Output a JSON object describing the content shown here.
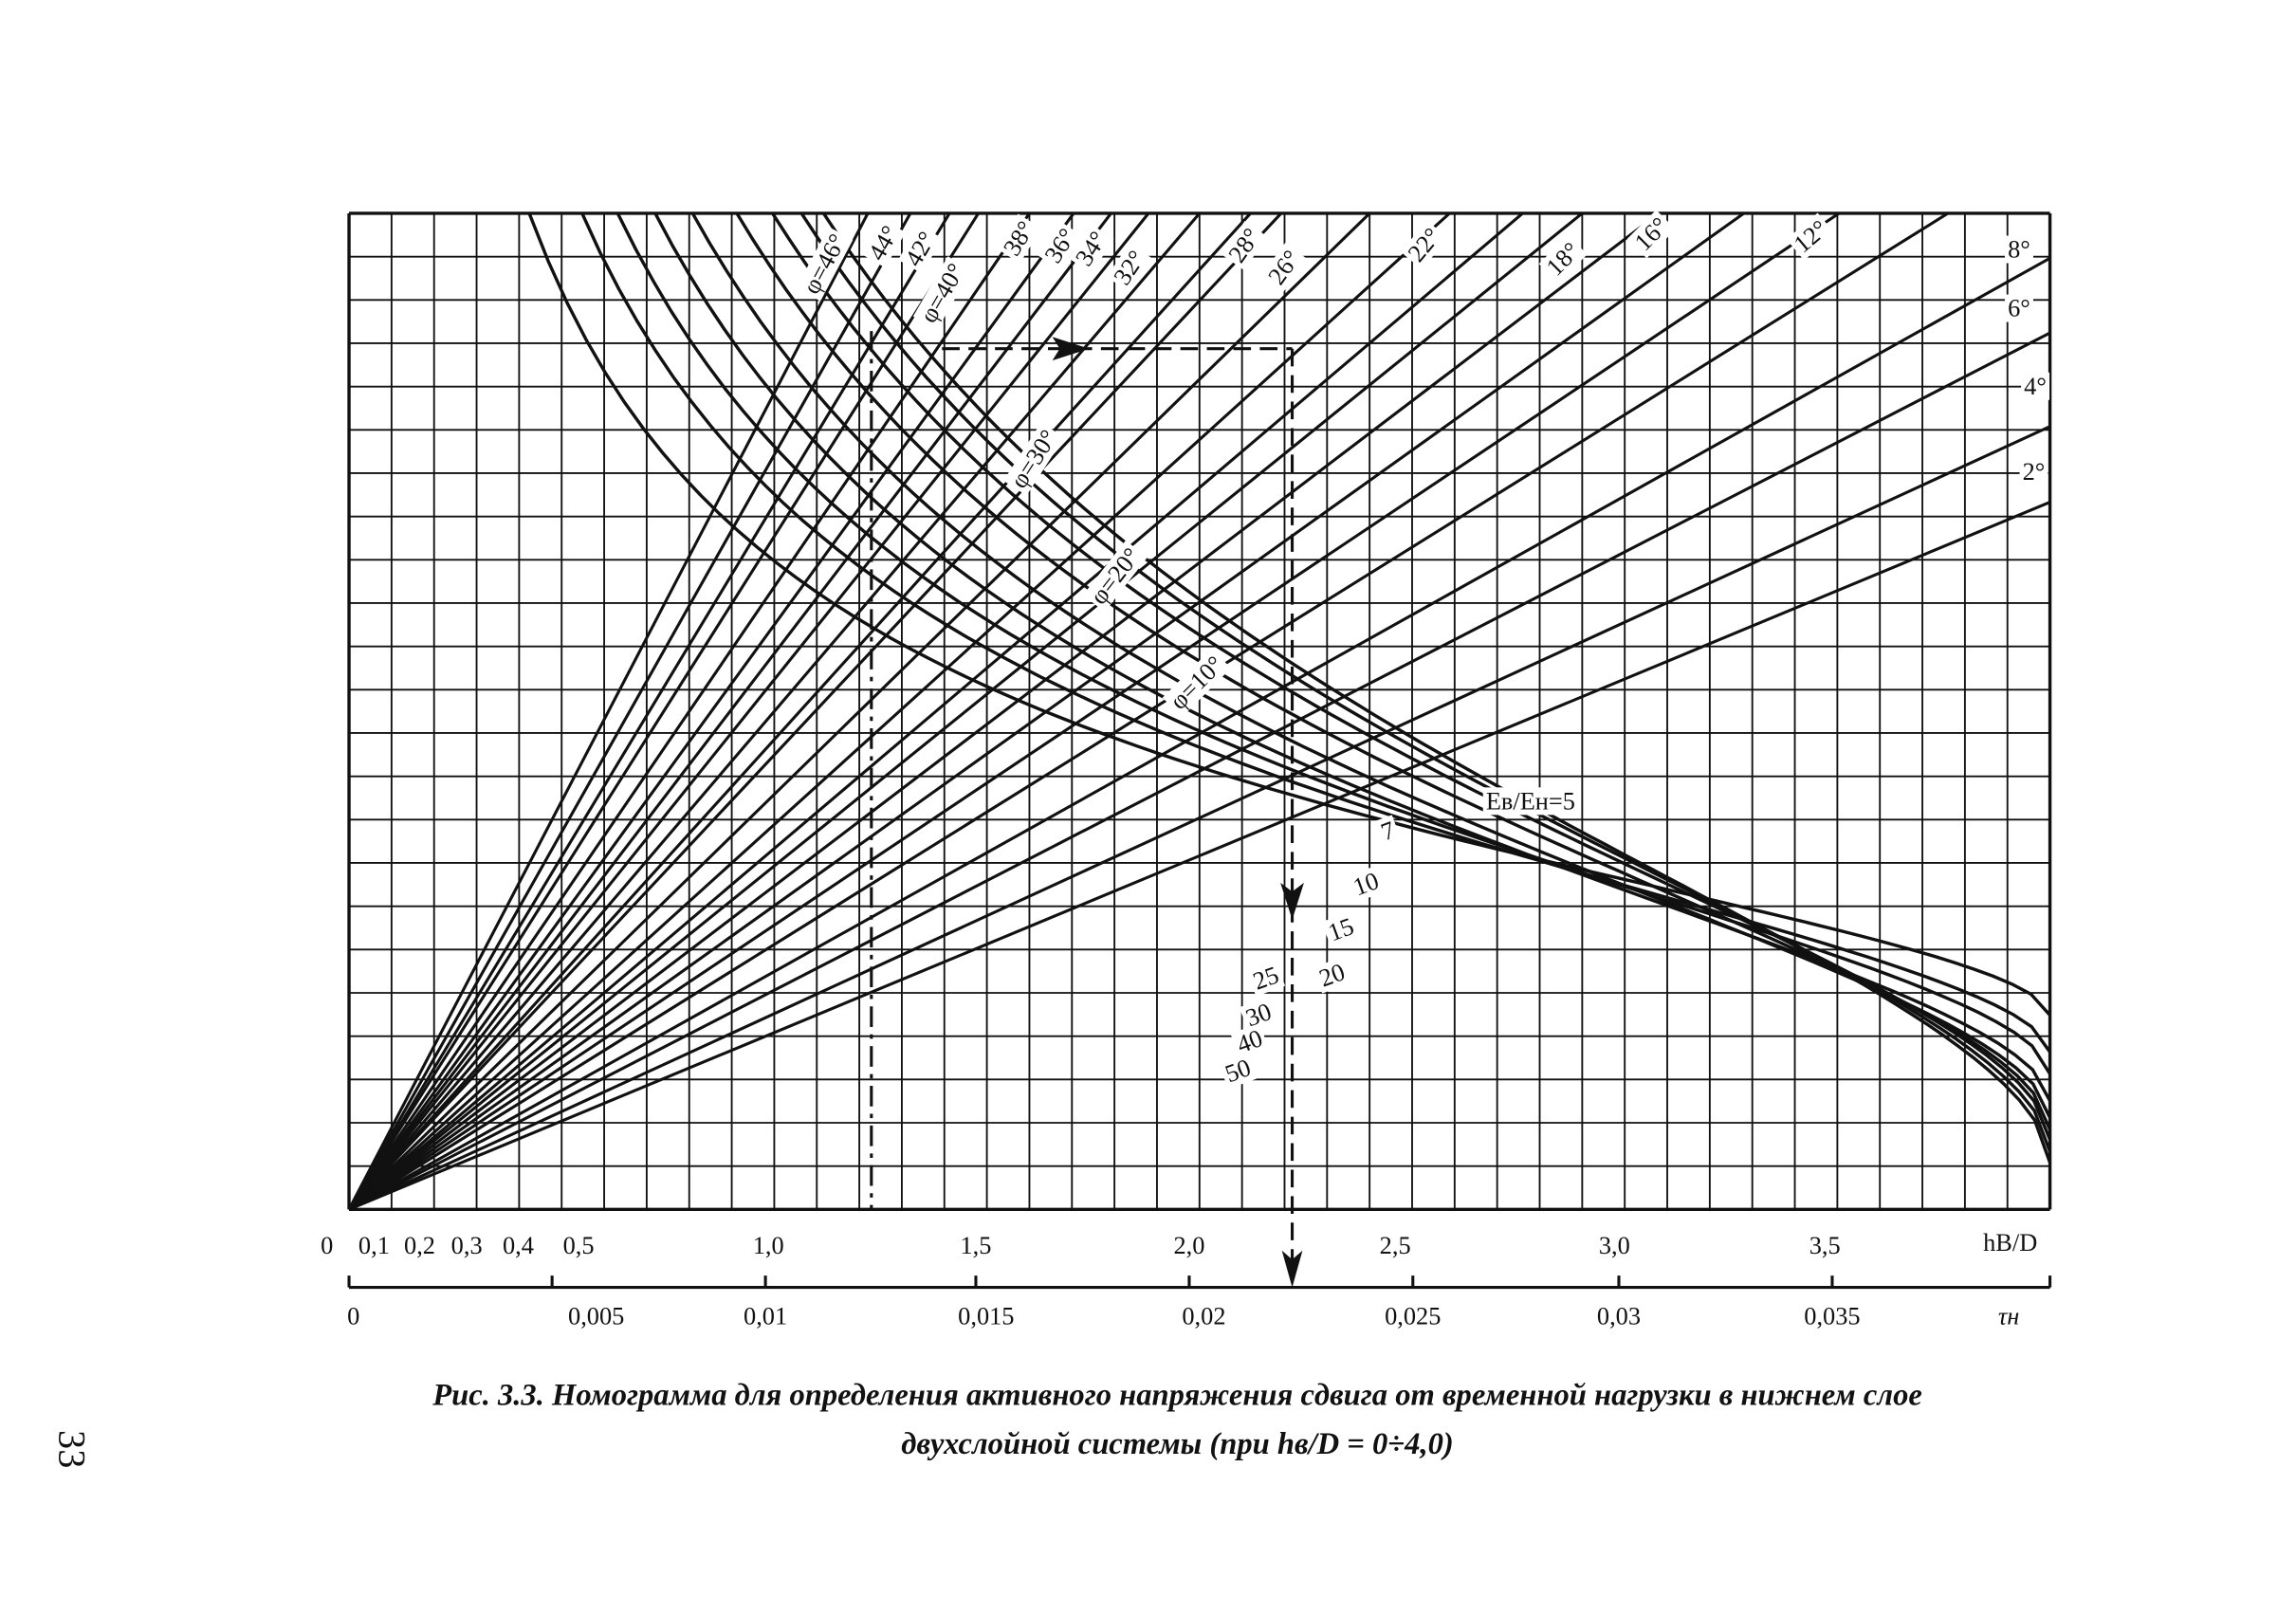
{
  "figure": {
    "top_axis": {
      "label": "hB/D",
      "tick_labels": [
        "0",
        "0,1",
        "0,2",
        "0,3",
        "0,4",
        "0,5",
        "1,0",
        "1,5",
        "2,0",
        "2,5",
        "3,0",
        "3,5"
      ]
    },
    "bottom_axis": {
      "label": "τн",
      "tick_labels": [
        "0",
        "0,005",
        "0,01",
        "0,015",
        "0,02",
        "0,025",
        "0,03",
        "0,035"
      ]
    },
    "angle_labels": [
      "φ=46°",
      "44°",
      "42°",
      "φ=40°",
      "38°",
      "36°",
      "34°",
      "32°",
      "28°",
      "26°",
      "22°",
      "18°",
      "16°",
      "12°",
      "8°",
      "6°",
      "4°",
      "2°",
      "φ=30°",
      "φ=20°",
      "φ=10°"
    ],
    "ratio_labels": [
      "Eв/Eн=5",
      "7",
      "10",
      "15",
      "20",
      "25",
      "30",
      "40",
      "50"
    ]
  },
  "caption": {
    "line1": "Рис. 3.3. Номограмма для определения активного напряжения сдвига от временной нагрузки в нижнем слое",
    "line2": "двухслойной системы (при hв/D = 0÷4,0)"
  },
  "page_number": "33"
}
